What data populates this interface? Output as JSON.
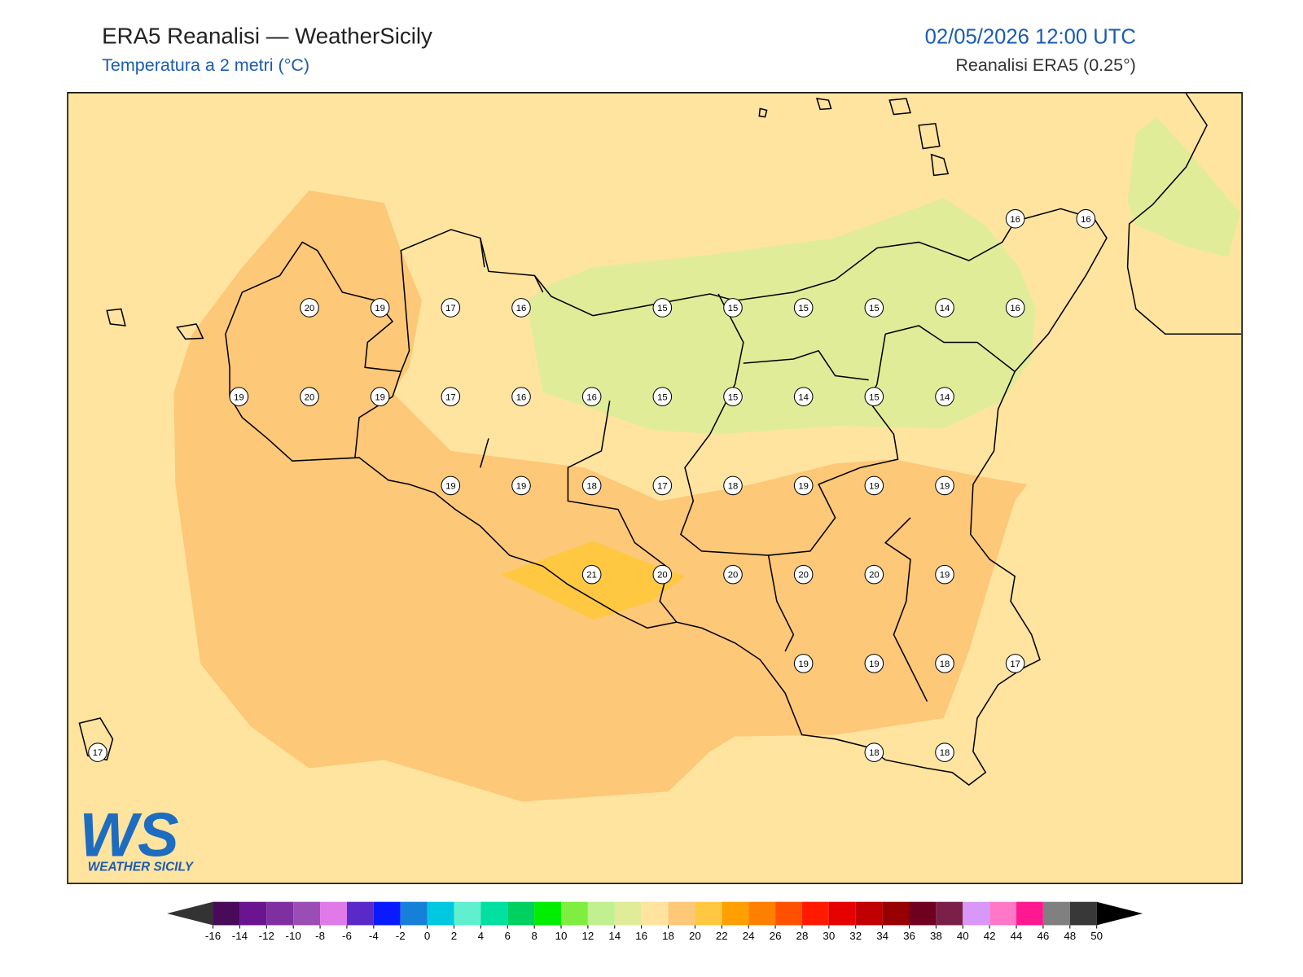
{
  "header": {
    "title": "ERA5 Reanalisi — WeatherSicily",
    "subtitle": "Temperatura a 2 metri (°C)",
    "datetime": "02/05/2026 12:00 UTC",
    "source": "Reanalisi ERA5 (0.25°)"
  },
  "map": {
    "grid": [
      [
        null,
        null,
        null,
        null,
        null,
        null,
        null,
        null,
        null,
        null,
        null,
        null,
        null,
        16,
        16
      ],
      [
        null,
        null,
        null,
        20,
        19,
        17,
        16,
        null,
        15,
        15,
        15,
        15,
        14,
        16,
        null
      ],
      [
        null,
        null,
        19,
        20,
        19,
        17,
        16,
        16,
        15,
        15,
        14,
        15,
        14,
        null,
        null
      ],
      [
        null,
        null,
        null,
        null,
        null,
        19,
        19,
        18,
        17,
        18,
        19,
        19,
        19,
        null,
        null
      ],
      [
        null,
        null,
        null,
        null,
        null,
        null,
        null,
        21,
        20,
        20,
        20,
        20,
        19,
        null,
        null
      ],
      [
        null,
        null,
        null,
        null,
        null,
        null,
        null,
        null,
        null,
        null,
        19,
        19,
        18,
        17,
        null
      ],
      [
        17,
        null,
        null,
        null,
        null,
        null,
        null,
        null,
        null,
        null,
        null,
        18,
        18,
        null,
        null
      ]
    ]
  },
  "logo": {
    "mark": "WS",
    "name": "WEATHER SICILY"
  },
  "colorbar": {
    "ticks": [
      -16,
      -14,
      -12,
      -10,
      -8,
      -6,
      -4,
      -2,
      0,
      2,
      4,
      6,
      8,
      10,
      12,
      14,
      16,
      18,
      20,
      22,
      24,
      26,
      28,
      30,
      32,
      34,
      36,
      38,
      40,
      42,
      44,
      46,
      48,
      50
    ],
    "colors": [
      "#4a0a5a",
      "#6a1490",
      "#7f2fa0",
      "#9a4db5",
      "#e07ae8",
      "#5a2ac8",
      "#0a1aff",
      "#1580d8",
      "#00c8e0",
      "#60f0d0",
      "#00e0a0",
      "#00d060",
      "#00ee00",
      "#80ee40",
      "#c0f090",
      "#e0ec98",
      "#ffe4a0",
      "#fdc878",
      "#ffc840",
      "#ffa000",
      "#ff8000",
      "#ff5000",
      "#ff1a00",
      "#e60000",
      "#c00000",
      "#960000",
      "#700020",
      "#7a2048",
      "#d898f8",
      "#ff78c8",
      "#ff1890",
      "#808080",
      "#383838"
    ],
    "under": "#333333",
    "over": "#000000"
  }
}
